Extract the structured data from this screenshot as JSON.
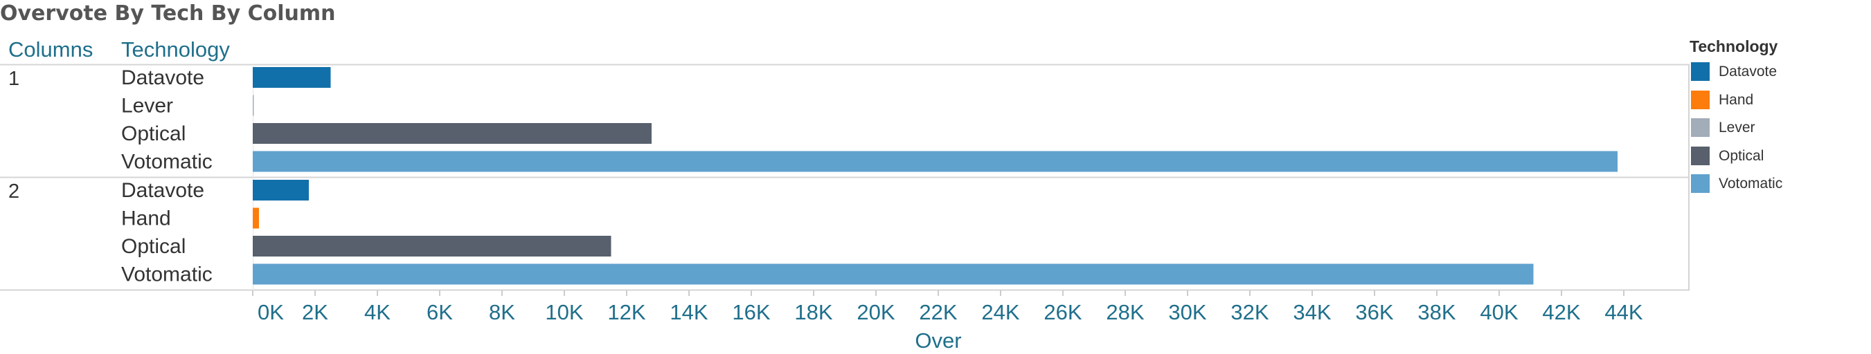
{
  "title": "Overvote By Tech By Column",
  "header": {
    "columns_label": "Columns",
    "technology_label": "Technology"
  },
  "legend": {
    "title": "Technology",
    "items": [
      {
        "label": "Datavote",
        "color": "#1170aa"
      },
      {
        "label": "Hand",
        "color": "#fc7d0b"
      },
      {
        "label": "Lever",
        "color": "#a3acb9"
      },
      {
        "label": "Optical",
        "color": "#57606c"
      },
      {
        "label": "Votomatic",
        "color": "#5fa2ce"
      }
    ]
  },
  "chart_data": {
    "type": "bar",
    "orientation": "horizontal",
    "title": "Overvote By Tech By Column",
    "xlabel": "Over",
    "xlim": [
      0,
      44000
    ],
    "x_ticks": [
      "0K",
      "2K",
      "4K",
      "6K",
      "8K",
      "10K",
      "12K",
      "14K",
      "16K",
      "18K",
      "20K",
      "22K",
      "24K",
      "26K",
      "28K",
      "30K",
      "32K",
      "34K",
      "36K",
      "38K",
      "40K",
      "42K",
      "44K"
    ],
    "groups": [
      {
        "column": "1",
        "bars": [
          {
            "technology": "Datavote",
            "value": 2500
          },
          {
            "technology": "Lever",
            "value": 30
          },
          {
            "technology": "Optical",
            "value": 12800
          },
          {
            "technology": "Votomatic",
            "value": 43800
          }
        ]
      },
      {
        "column": "2",
        "bars": [
          {
            "technology": "Datavote",
            "value": 1800
          },
          {
            "technology": "Hand",
            "value": 200
          },
          {
            "technology": "Optical",
            "value": 11500
          },
          {
            "technology": "Votomatic",
            "value": 41100
          }
        ]
      }
    ],
    "colors": {
      "Datavote": "#1170aa",
      "Hand": "#fc7d0b",
      "Lever": "#a3acb9",
      "Optical": "#57606c",
      "Votomatic": "#5fa2ce"
    },
    "grid": false,
    "legend_position": "right"
  }
}
